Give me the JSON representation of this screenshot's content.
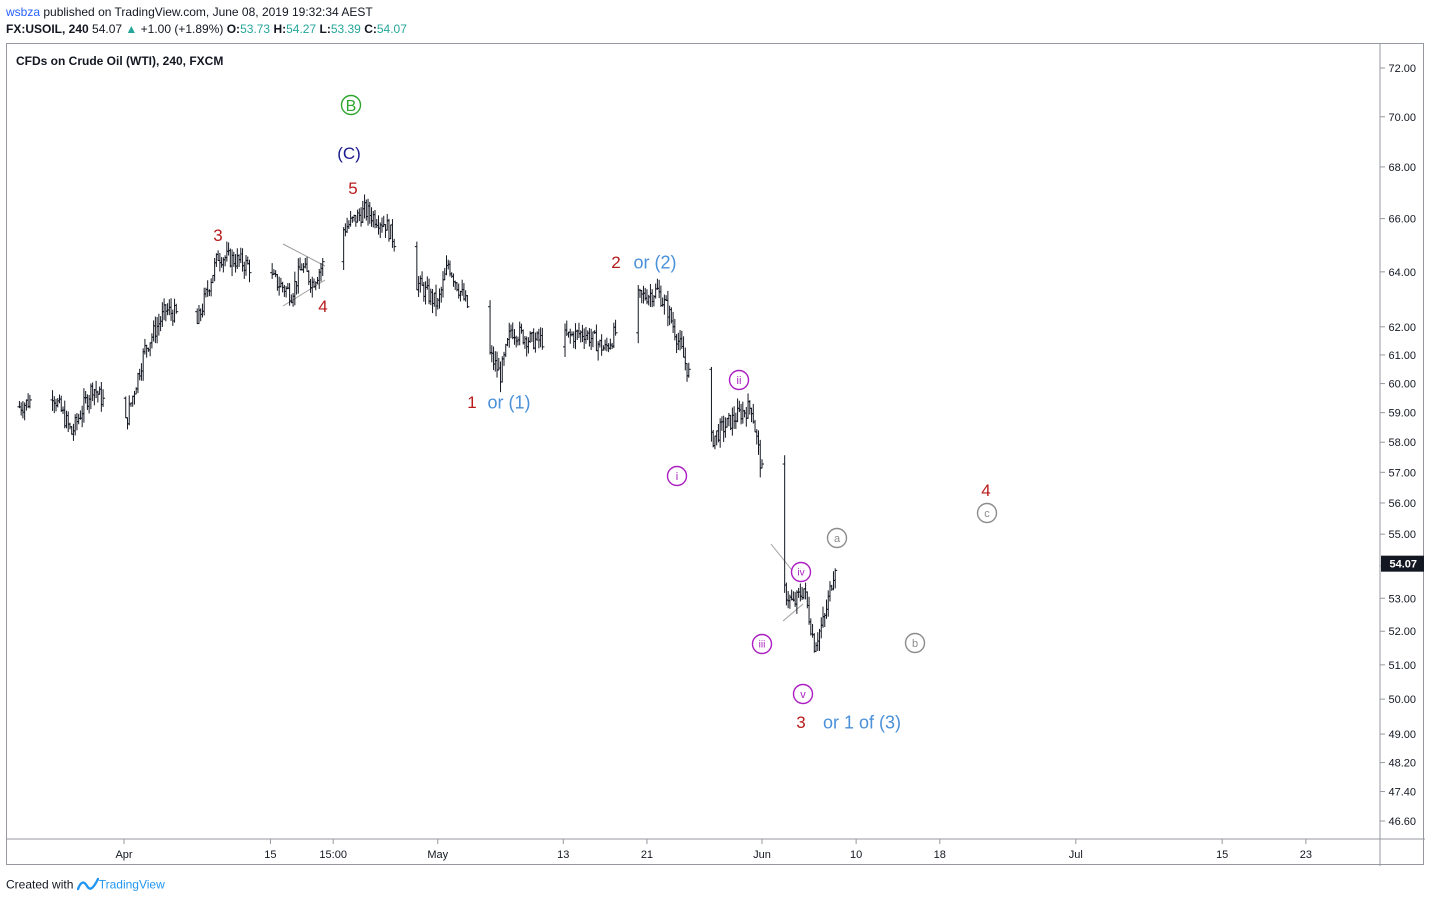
{
  "header": {
    "author": "wsbza",
    "published_text": "published on TradingView.com, June 08, 2019 19:32:34 AEST",
    "symbol": "FX:USOIL, 240",
    "last": "54.07",
    "change_arrow": "▲",
    "change": "+1.00 (+1.89%)",
    "o_label": "O:",
    "o_value": "53.73",
    "h_label": "H:",
    "h_value": "54.27",
    "l_label": "L:",
    "l_value": "53.39",
    "c_label": "C:",
    "c_value": "54.07"
  },
  "chart_title": "CFDs on Crude Oil (WTI), 240, FXCM",
  "footer": {
    "created_with": "Created with",
    "brand": "TradingView"
  },
  "colors": {
    "bars": "#131722",
    "axis_text": "#131722",
    "price_tag": "#131722",
    "red": "#b71c1c",
    "blue_label": "#4a90d9",
    "navy": "#1a1a8f",
    "green": "#2fa52f",
    "magenta": "#ab1ec1",
    "grey": "#8c8c8c"
  },
  "chart_data": {
    "type": "ohlc-bar",
    "price_axis": {
      "ticks": [
        "72.00",
        "70.00",
        "68.00",
        "66.00",
        "64.00",
        "62.00",
        "61.00",
        "60.00",
        "59.00",
        "58.00",
        "57.00",
        "56.00",
        "55.00",
        "54.00",
        "53.00",
        "52.00",
        "51.00",
        "50.00",
        "49.00",
        "48.20",
        "47.40",
        "46.60"
      ],
      "log_scale": true,
      "last_price": "54.07"
    },
    "time_axis": {
      "ticks": [
        "Apr",
        "15",
        "15:00",
        "May",
        "13",
        "21",
        "Jun",
        "10",
        "18",
        "Jul",
        "15",
        "23"
      ]
    },
    "series_keypoints": [
      {
        "date": "2019-03-22",
        "price": 59.2
      },
      {
        "date": "2019-03-25",
        "price": 59.8
      },
      {
        "date": "2019-03-27",
        "price": 58.3
      },
      {
        "date": "2019-03-29",
        "price": 59.9
      },
      {
        "date": "2019-04-01",
        "price": 58.4
      },
      {
        "date": "2019-04-03",
        "price": 61.2
      },
      {
        "date": "2019-04-05",
        "price": 62.6
      },
      {
        "date": "2019-04-08",
        "price": 62.1
      },
      {
        "date": "2019-04-10",
        "price": 64.6
      },
      {
        "date": "2019-04-12",
        "price": 64.4
      },
      {
        "date": "2019-04-15",
        "price": 63.8
      },
      {
        "date": "2019-04-17",
        "price": 63.2
      },
      {
        "date": "2019-04-18",
        "price": 64.2
      },
      {
        "date": "2019-04-19",
        "price": 63.6
      },
      {
        "date": "2019-04-22",
        "price": 65.6
      },
      {
        "date": "2019-04-24",
        "price": 66.3
      },
      {
        "date": "2019-04-26",
        "price": 65.8
      },
      {
        "date": "2019-04-29",
        "price": 63.6
      },
      {
        "date": "2019-05-01",
        "price": 62.8
      },
      {
        "date": "2019-05-02",
        "price": 64.3
      },
      {
        "date": "2019-05-03",
        "price": 63.4
      },
      {
        "date": "2019-05-06",
        "price": 61.0
      },
      {
        "date": "2019-05-07",
        "price": 60.3
      },
      {
        "date": "2019-05-08",
        "price": 61.9
      },
      {
        "date": "2019-05-10",
        "price": 61.5
      },
      {
        "date": "2019-05-13",
        "price": 61.6
      },
      {
        "date": "2019-05-15",
        "price": 61.8
      },
      {
        "date": "2019-05-17",
        "price": 61.2
      },
      {
        "date": "2019-05-20",
        "price": 63.0
      },
      {
        "date": "2019-05-22",
        "price": 63.3
      },
      {
        "date": "2019-05-23",
        "price": 62.6
      },
      {
        "date": "2019-05-24",
        "price": 61.5
      },
      {
        "date": "2019-05-27",
        "price": 58.0
      },
      {
        "date": "2019-05-28",
        "price": 58.4
      },
      {
        "date": "2019-05-30",
        "price": 59.0
      },
      {
        "date": "2019-05-31",
        "price": 59.2
      },
      {
        "date": "2019-06-01",
        "price": 57.0
      },
      {
        "date": "2019-06-03",
        "price": 53.3
      },
      {
        "date": "2019-06-04",
        "price": 52.8
      },
      {
        "date": "2019-06-05",
        "price": 53.3
      },
      {
        "date": "2019-06-06",
        "price": 51.6
      },
      {
        "date": "2019-06-07",
        "price": 52.4
      },
      {
        "date": "2019-06-08",
        "price": 54.07
      }
    ]
  },
  "wave_labels": [
    {
      "id": "B-circle",
      "text": "B",
      "color": "green",
      "circle": true
    },
    {
      "id": "C-paren",
      "text": "(C)",
      "color": "navy",
      "circle": false
    },
    {
      "id": "5",
      "text": "5",
      "color": "red",
      "circle": false
    },
    {
      "id": "3-top",
      "text": "3",
      "color": "red",
      "circle": false
    },
    {
      "id": "4-top",
      "text": "4",
      "color": "red",
      "circle": false
    },
    {
      "id": "1",
      "text": "1",
      "color": "red",
      "circle": false
    },
    {
      "id": "or-1",
      "text": "or (1)",
      "color": "blue_label",
      "circle": false
    },
    {
      "id": "2",
      "text": "2",
      "color": "red",
      "circle": false
    },
    {
      "id": "or-2",
      "text": "or (2)",
      "color": "blue_label",
      "circle": false
    },
    {
      "id": "i",
      "text": "i",
      "color": "magenta",
      "circle": true
    },
    {
      "id": "ii",
      "text": "ii",
      "color": "magenta",
      "circle": true
    },
    {
      "id": "iii",
      "text": "iii",
      "color": "magenta",
      "circle": true
    },
    {
      "id": "iv",
      "text": "iv",
      "color": "magenta",
      "circle": true
    },
    {
      "id": "v",
      "text": "v",
      "color": "magenta",
      "circle": true
    },
    {
      "id": "3-bottom",
      "text": "3",
      "color": "red",
      "circle": false
    },
    {
      "id": "or-1-of-3",
      "text": "or 1 of (3)",
      "color": "blue_label",
      "circle": false
    },
    {
      "id": "a",
      "text": "a",
      "color": "grey",
      "circle": true
    },
    {
      "id": "b",
      "text": "b",
      "color": "grey",
      "circle": true
    },
    {
      "id": "c",
      "text": "c",
      "color": "grey",
      "circle": true
    },
    {
      "id": "4-future",
      "text": "4",
      "color": "red",
      "circle": false
    }
  ]
}
